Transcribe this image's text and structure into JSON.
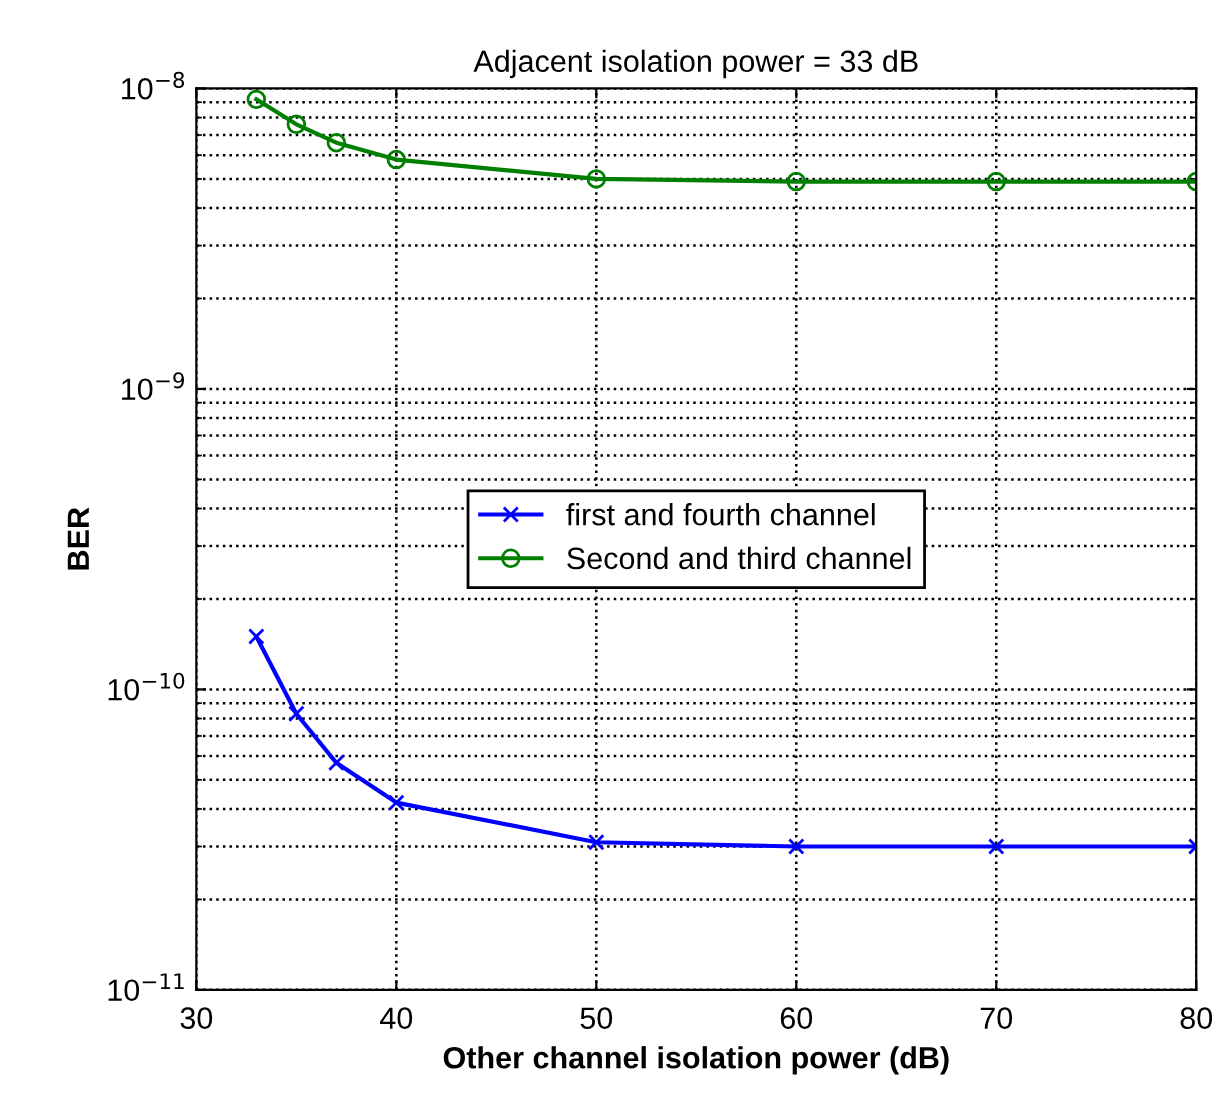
{
  "chart_data": {
    "type": "line",
    "title": "Adjacent isolation power = 33 dB",
    "xlabel": "Other channel isolation power (dB)",
    "ylabel": "BER",
    "x": [
      33,
      35,
      37,
      40,
      50,
      60,
      70,
      80
    ],
    "series": [
      {
        "name": "first and fourth channel",
        "color": "#0000ff",
        "marker": "cross",
        "values": [
          1.5e-10,
          8.3e-11,
          5.7e-11,
          4.2e-11,
          3.1e-11,
          3e-11,
          3e-11,
          3e-11
        ]
      },
      {
        "name": "Second and third channel",
        "color": "#007f00",
        "marker": "circle",
        "values": [
          9.2e-09,
          7.6e-09,
          6.6e-09,
          5.8e-09,
          5e-09,
          4.9e-09,
          4.9e-09,
          4.9e-09
        ]
      }
    ],
    "log": "y",
    "xlim": [
      30,
      80
    ],
    "xticks": [
      30,
      40,
      50,
      60,
      70,
      80
    ],
    "ylim": [
      1e-11,
      1e-08
    ],
    "yticks": [
      {
        "value": 1e-11,
        "label": "10$^{−11}$"
      },
      {
        "value": 1e-10,
        "label": "10$^{−10}$"
      },
      {
        "value": 1e-09,
        "label": "10$^{−9}$"
      },
      {
        "value": 1e-08,
        "label": "10$^{−8}$"
      }
    ],
    "grid": true,
    "legend": "center",
    "line_style": "solid"
  }
}
